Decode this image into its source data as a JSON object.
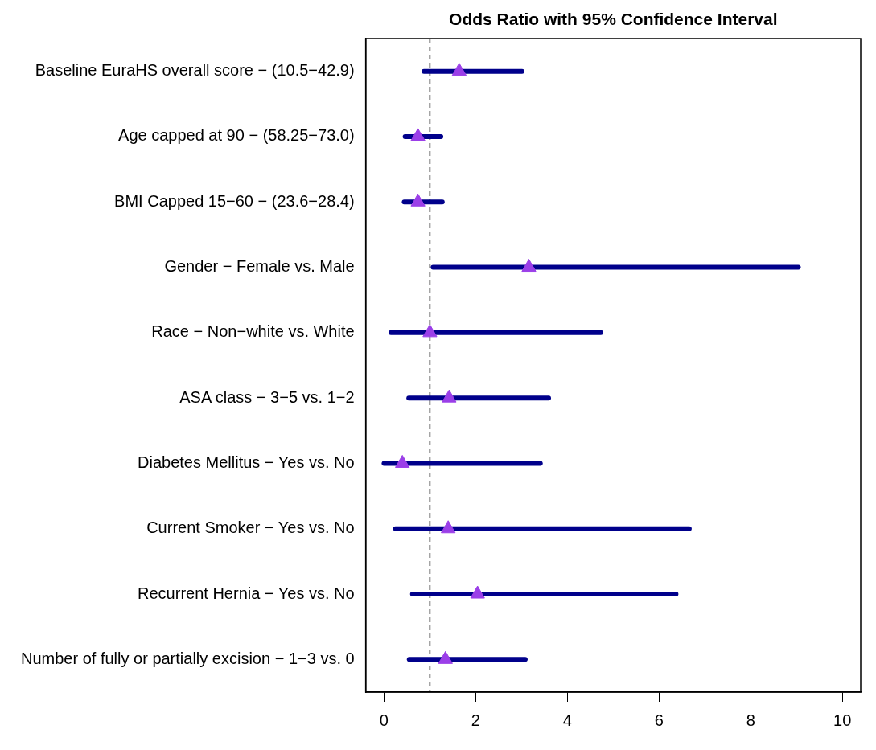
{
  "chart_data": {
    "type": "scatter",
    "orientation": "horizontal",
    "title": "Odds Ratio with 95% Confidence Interval",
    "categories": [
      "Baseline EuraHS overall score − (10.5−42.9)",
      "Age capped at 90 − (58.25−73.0)",
      "BMI Capped 15−60 − (23.6−28.4)",
      "Gender − Female vs. Male",
      "Race − Non−white vs. White",
      "ASA class − 3−5 vs. 1−2",
      "Diabetes Mellitus − Yes vs. No",
      "Current Smoker − Yes vs. No",
      "Recurrent Hernia − Yes vs. No",
      "Number of fully or partially excision − 1−3 vs. 0"
    ],
    "color": "#9b3fe8",
    "values": [
      1.64,
      0.74,
      0.74,
      3.16,
      1.0,
      1.42,
      0.4,
      1.4,
      2.04,
      1.34
    ],
    "errors": [
      [
        0.87,
        3.01
      ],
      [
        0.46,
        1.24
      ],
      [
        0.44,
        1.27
      ],
      [
        1.07,
        9.04
      ],
      [
        0.15,
        4.73
      ],
      [
        0.54,
        3.59
      ],
      [
        0.0,
        3.41
      ],
      [
        0.25,
        6.66
      ],
      [
        0.62,
        6.37
      ],
      [
        0.55,
        3.08
      ]
    ],
    "xlim": [
      -0.4,
      10.4
    ],
    "xticks": [
      0,
      2,
      4,
      6,
      8,
      10
    ],
    "ref_lines": [
      {
        "axis": "x",
        "value": 1,
        "line_style": "dashed",
        "color": "#000000"
      }
    ],
    "marker": "triangle",
    "grid": false,
    "legend": false
  }
}
